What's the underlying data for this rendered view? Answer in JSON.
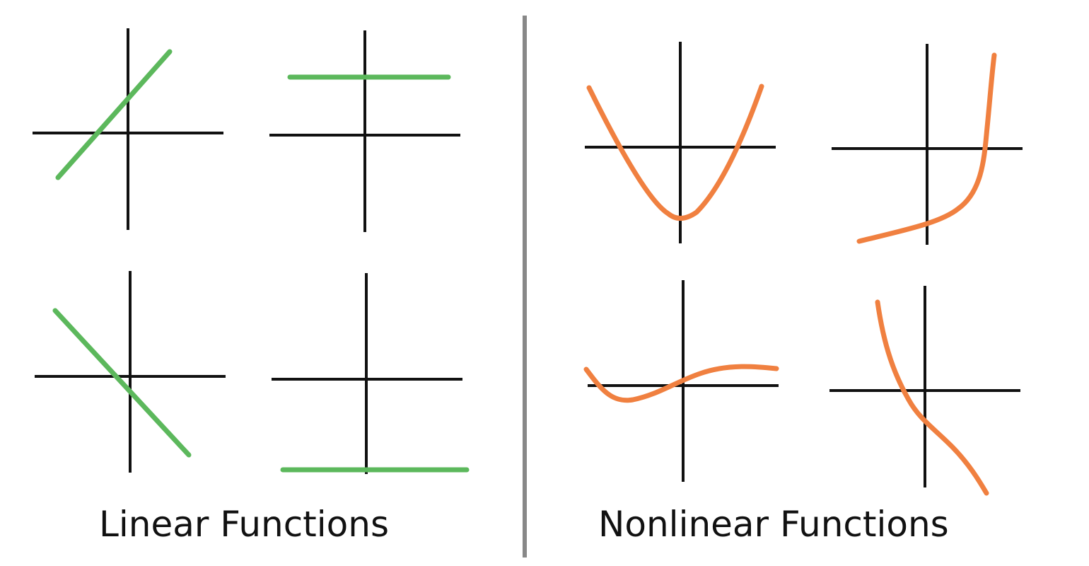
{
  "captions": {
    "linear": "Linear Functions",
    "nonlinear": "Nonlinear Functions"
  },
  "colors": {
    "axis": "#111111",
    "divider": "#888888",
    "linear": "#5cb85c",
    "nonlinear": "#f08040"
  }
}
